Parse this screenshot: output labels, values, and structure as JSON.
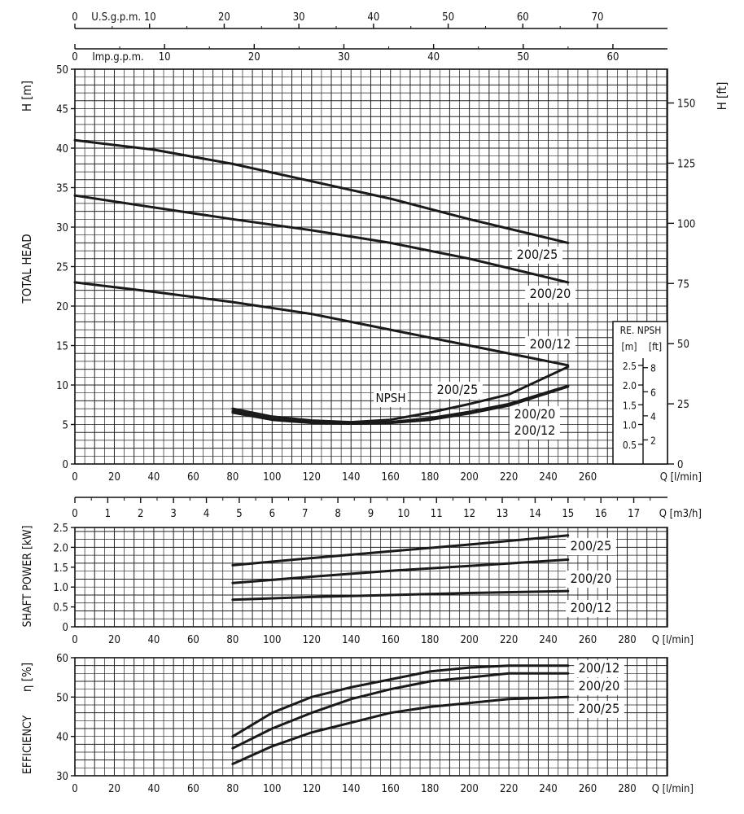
{
  "chart_data": [
    {
      "type": "line",
      "name": "head",
      "top_axes": [
        {
          "label": "U.S.g.p.m.",
          "ticks": [
            "0",
            "10",
            "20",
            "30",
            "40",
            "50",
            "60",
            "70"
          ]
        },
        {
          "label": "Imp.g.p.m.",
          "ticks": [
            "0",
            "10",
            "20",
            "30",
            "40",
            "50",
            "60"
          ]
        }
      ],
      "xlabel": "Q [l/min]",
      "xlim": [
        0,
        300
      ],
      "xticks": [
        "0",
        "20",
        "40",
        "60",
        "80",
        "100",
        "120",
        "140",
        "160",
        "180",
        "200",
        "220",
        "240",
        "260"
      ],
      "ylabel_left": "TOTAL HEAD",
      "yunit_left": "H [m]",
      "ylim": [
        0,
        50
      ],
      "yticks": [
        "0",
        "5",
        "10",
        "15",
        "20",
        "25",
        "30",
        "35",
        "40",
        "45",
        "50"
      ],
      "ylabel_right": "H [ft]",
      "yticks_right": [
        "0",
        "25",
        "50",
        "75",
        "100",
        "125",
        "150"
      ],
      "grid": true,
      "series": [
        {
          "name": "200/25",
          "x": [
            0,
            40,
            80,
            120,
            160,
            200,
            250
          ],
          "values": [
            41,
            39.8,
            38,
            35.8,
            33.6,
            31,
            28
          ]
        },
        {
          "name": "200/20",
          "x": [
            0,
            40,
            80,
            120,
            160,
            200,
            250
          ],
          "values": [
            34,
            32.5,
            31,
            29.6,
            28,
            26,
            23
          ]
        },
        {
          "name": "200/12",
          "x": [
            0,
            40,
            80,
            120,
            160,
            200,
            250
          ],
          "values": [
            23,
            21.8,
            20.5,
            19,
            17,
            15,
            12.5
          ]
        }
      ],
      "npsh_label": "NPSH",
      "npsh_series": [
        {
          "name": "200/25",
          "x": [
            80,
            100,
            120,
            140,
            160,
            180,
            200,
            220,
            250
          ],
          "values": [
            7,
            6,
            5.5,
            5.3,
            5.6,
            6.5,
            7.6,
            8.8,
            12.3
          ]
        },
        {
          "name": "200/20",
          "x": [
            80,
            100,
            120,
            140,
            160,
            180,
            200,
            220,
            250
          ],
          "values": [
            6.7,
            5.7,
            5.3,
            5.2,
            5.3,
            5.8,
            6.6,
            7.6,
            9.9
          ]
        },
        {
          "name": "200/12",
          "x": [
            80,
            100,
            120,
            140,
            160,
            180,
            200,
            220,
            250
          ],
          "values": [
            6.5,
            5.6,
            5.2,
            5.1,
            5.2,
            5.6,
            6.4,
            7.4,
            9.8
          ]
        }
      ],
      "npsh_inset": {
        "title": "RE. NPSH",
        "units": [
          "[m]",
          "[ft]"
        ],
        "m_ticks": [
          "0.5",
          "1.0",
          "1.5",
          "2.0",
          "2.5"
        ],
        "ft_ticks": [
          "2",
          "4",
          "6",
          "8"
        ]
      }
    },
    {
      "type": "axis",
      "name": "flow-m3h",
      "xlabel": "Q [m3/h]",
      "xticks": [
        "0",
        "1",
        "2",
        "3",
        "4",
        "5",
        "6",
        "7",
        "8",
        "9",
        "10",
        "11",
        "12",
        "13",
        "14",
        "15",
        "16",
        "17"
      ]
    },
    {
      "type": "line",
      "name": "power",
      "ylabel": "SHAFT POWER [kW]",
      "ylim": [
        0,
        2.5
      ],
      "yticks": [
        "0",
        "0.5",
        "1.0",
        "1.5",
        "2.0",
        "2.5"
      ],
      "xlabel": "Q [l/min]",
      "xticks": [
        "0",
        "20",
        "40",
        "60",
        "80",
        "100",
        "120",
        "140",
        "160",
        "180",
        "200",
        "220",
        "240",
        "260",
        "280"
      ],
      "grid": true,
      "series": [
        {
          "name": "200/25",
          "x": [
            80,
            120,
            160,
            200,
            250
          ],
          "values": [
            1.55,
            1.73,
            1.9,
            2.07,
            2.3
          ]
        },
        {
          "name": "200/20",
          "x": [
            80,
            120,
            160,
            200,
            250
          ],
          "values": [
            1.1,
            1.26,
            1.41,
            1.53,
            1.69
          ]
        },
        {
          "name": "200/12",
          "x": [
            80,
            120,
            160,
            200,
            250
          ],
          "values": [
            0.68,
            0.75,
            0.8,
            0.85,
            0.9
          ]
        }
      ]
    },
    {
      "type": "line",
      "name": "efficiency",
      "ylabel": "EFFICIENCY",
      "yunit": "η [%]",
      "ylim": [
        30,
        60
      ],
      "yticks": [
        "30",
        "40",
        "50",
        "60"
      ],
      "xlabel": "Q [l/min]",
      "xticks": [
        "0",
        "20",
        "40",
        "60",
        "80",
        "100",
        "120",
        "140",
        "160",
        "180",
        "200",
        "220",
        "240",
        "260",
        "280"
      ],
      "grid": true,
      "series": [
        {
          "name": "200/12",
          "x": [
            80,
            100,
            120,
            140,
            160,
            180,
            200,
            220,
            250
          ],
          "values": [
            40,
            46,
            50,
            52.5,
            54.5,
            56.5,
            57.5,
            58,
            58
          ]
        },
        {
          "name": "200/20",
          "x": [
            80,
            100,
            120,
            140,
            160,
            180,
            200,
            220,
            250
          ],
          "values": [
            37,
            42,
            46,
            49.5,
            52,
            54,
            55,
            56,
            56
          ]
        },
        {
          "name": "200/25",
          "x": [
            80,
            100,
            120,
            140,
            160,
            180,
            200,
            220,
            250
          ],
          "values": [
            33,
            37.5,
            41,
            43.5,
            46,
            47.5,
            48.5,
            49.5,
            50
          ]
        }
      ]
    }
  ]
}
